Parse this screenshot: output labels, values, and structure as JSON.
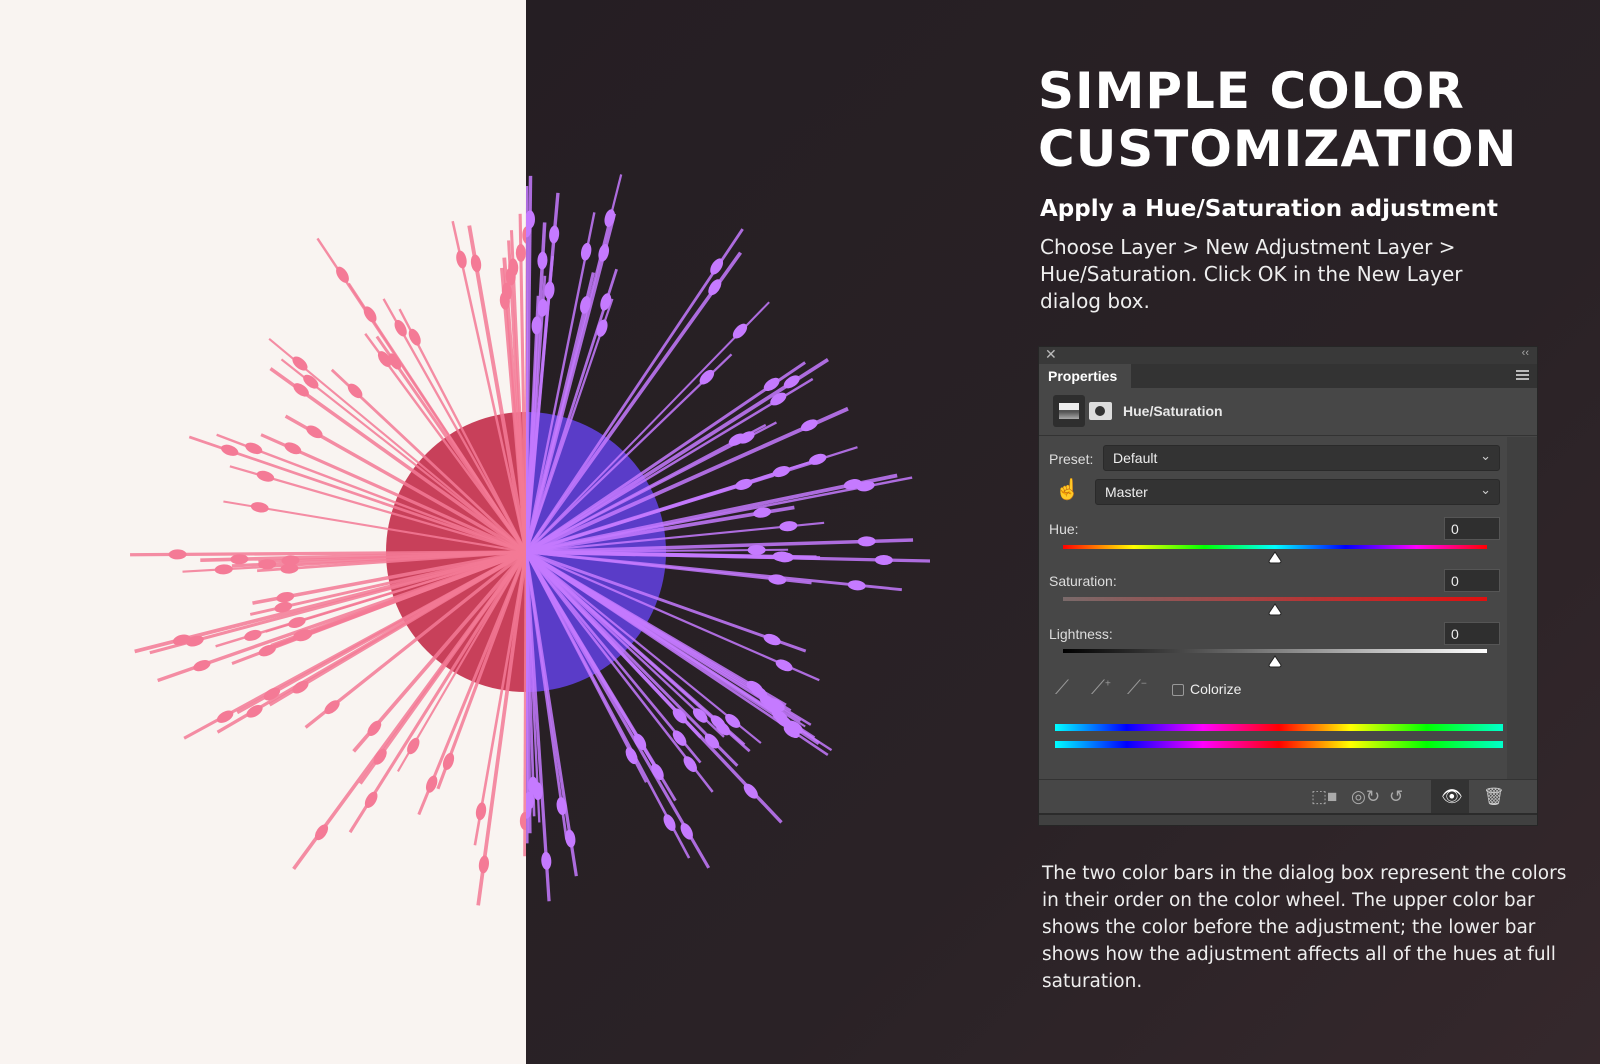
{
  "heading": {
    "line1": "SIMPLE COLOR",
    "line2": "CUSTOMIZATION"
  },
  "subtitle": "Apply a Hue/Saturation adjustment",
  "intro": "Choose Layer > New Adjustment Layer > Hue/Saturation. Click OK in the New Layer dialog box.",
  "outro": "The two color bars in the dialog box represent the colors in their order on the color wheel. The upper color bar shows the color before the adjustment; the lower bar shows how the adjustment affects all of the hues at full saturation.",
  "colors": {
    "left_bg": "#f9f4f1",
    "right_bg": "#2a2226",
    "flower_left": "#f47a96",
    "flower_right": "#c57aff",
    "core_right": "#5a3cc8"
  },
  "panel": {
    "tab": "Properties",
    "adjustment": "Hue/Saturation",
    "preset_label": "Preset:",
    "preset_value": "Default",
    "channel_value": "Master",
    "hue": {
      "label": "Hue:",
      "value": "0"
    },
    "saturation": {
      "label": "Saturation:",
      "value": "0"
    },
    "lightness": {
      "label": "Lightness:",
      "value": "0"
    },
    "colorize_label": "Colorize",
    "colorize_checked": false,
    "icons": [
      "close-icon",
      "collapse-icon",
      "panel-menu-icon",
      "adjustment-icon",
      "mask-icon",
      "targeted-adjustment-hand-icon",
      "eyedropper-icon",
      "eyedropper-add-icon",
      "eyedropper-subtract-icon",
      "clip-to-layer-icon",
      "view-previous-state-icon",
      "reset-icon",
      "visibility-icon",
      "delete-icon"
    ]
  }
}
